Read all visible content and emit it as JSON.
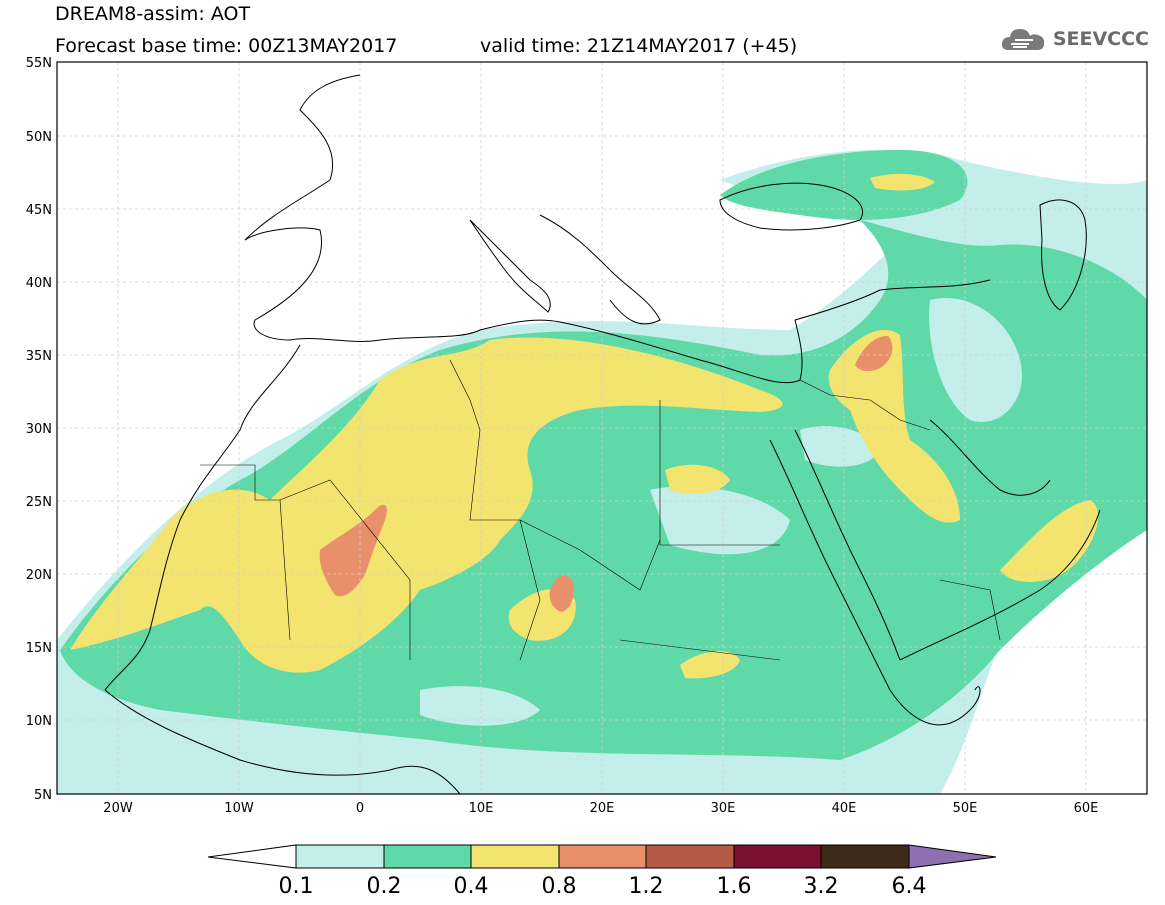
{
  "header": {
    "line1": "DREAM8-assim: AOT",
    "line2_left": "Forecast base time: 00Z13MAY2017",
    "line2_right": "valid time: 21Z14MAY2017 (+45)"
  },
  "logo": {
    "text": "SEEVCCC",
    "icon": "cloud-icon"
  },
  "map": {
    "lat_labels": [
      "55N",
      "50N",
      "45N",
      "40N",
      "35N",
      "30N",
      "25N",
      "20N",
      "15N",
      "10N",
      "5N"
    ],
    "lon_labels": [
      "20W",
      "10W",
      "0",
      "10E",
      "20E",
      "30E",
      "40E",
      "50E",
      "60E"
    ],
    "lat_range": [
      5,
      55
    ],
    "lon_range": [
      -25,
      65
    ],
    "grid": true
  },
  "colorbar": {
    "levels": [
      "0.1",
      "0.2",
      "0.4",
      "0.8",
      "1.2",
      "1.6",
      "3.2",
      "6.4"
    ],
    "colors": [
      "#ffffff",
      "#c4eee9",
      "#5fd9a8",
      "#f2e46e",
      "#e8906a",
      "#b55a45",
      "#7a1030",
      "#3d2a18",
      "#8e6fb0"
    ]
  }
}
